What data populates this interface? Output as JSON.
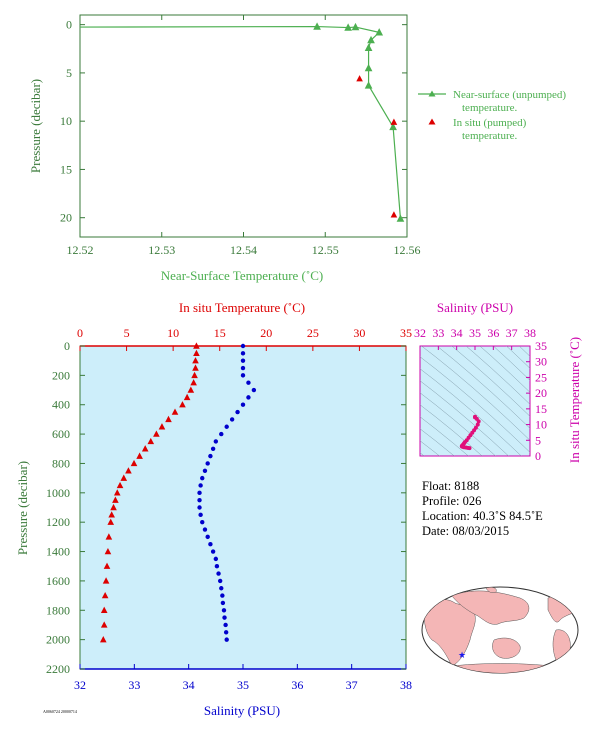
{
  "colors": {
    "axis_green": "#3a7a3a",
    "surface_line": "#4caf50",
    "insitu_red": "#dd0000",
    "salinity_blue": "#0000cc",
    "salinity_magenta": "#cc00aa",
    "ts_pink": "#e0107a",
    "panel_bg": "#cdeefa",
    "land": "#f4b6b6",
    "ocean": "#ffffff"
  },
  "chart_data": [
    {
      "type": "line",
      "xlabel": "Near-Surface Temperature (˚C)",
      "ylabel": "Pressure (decibar)",
      "xlim": [
        12.52,
        12.56
      ],
      "ylim": [
        22,
        -1
      ],
      "xticks": [
        12.52,
        12.53,
        12.54,
        12.55,
        12.56
      ],
      "xtick_labels": [
        "12.52",
        "12.53",
        "12.54",
        "12.55",
        "12.56"
      ],
      "yticks": [
        0,
        5,
        10,
        15,
        20
      ],
      "ytick_labels": [
        "0",
        "5",
        "10",
        "15",
        "20"
      ],
      "legend_position": "right",
      "series": [
        {
          "name": "Near-surface (unpumped) temperature.",
          "marker": "triangle",
          "x": [
            12.52,
            12.549,
            12.5528,
            12.5537,
            12.5566,
            12.5556,
            12.5553,
            12.5553,
            12.5553,
            12.5583,
            12.5592
          ],
          "y": [
            0.25,
            0.2,
            0.3,
            0.25,
            0.8,
            1.6,
            2.4,
            4.5,
            6.3,
            10.6,
            20.1
          ]
        },
        {
          "name": "In situ (pumped) temperature.",
          "marker": "triangle",
          "x": [
            12.5542,
            12.5584,
            12.5584
          ],
          "y": [
            5.6,
            10.1,
            19.7
          ]
        }
      ]
    },
    {
      "type": "scatter",
      "xlabel": "Salinity (PSU)",
      "x2label": "In situ Temperature (˚C)",
      "ylabel": "Pressure (decibar)",
      "salinity_lim": [
        32,
        38
      ],
      "salinity_ticks": [
        "32",
        "33",
        "34",
        "35",
        "36",
        "37",
        "38"
      ],
      "temperature_lim": [
        0,
        35
      ],
      "temperature_ticks": [
        "0",
        "5",
        "10",
        "15",
        "20",
        "25",
        "30",
        "35"
      ],
      "pressure_lim": [
        0,
        2200
      ],
      "pressure_ticks": [
        "0",
        "200",
        "400",
        "600",
        "800",
        "1000",
        "1200",
        "1400",
        "1600",
        "1800",
        "2000",
        "2200"
      ],
      "temperature_profile": {
        "pressure": [
          0,
          50,
          100,
          150,
          200,
          250,
          300,
          350,
          400,
          450,
          500,
          550,
          600,
          650,
          700,
          750,
          800,
          850,
          900,
          950,
          1000,
          1050,
          1100,
          1150,
          1200,
          1300,
          1400,
          1500,
          1600,
          1700,
          1800,
          1900,
          2000
        ],
        "values": [
          12.5,
          12.5,
          12.4,
          12.4,
          12.3,
          12.2,
          11.9,
          11.5,
          11.0,
          10.2,
          9.5,
          8.8,
          8.2,
          7.6,
          7.0,
          6.4,
          5.8,
          5.2,
          4.7,
          4.3,
          4.0,
          3.8,
          3.6,
          3.4,
          3.3,
          3.1,
          3.0,
          2.9,
          2.8,
          2.7,
          2.6,
          2.6,
          2.5
        ]
      },
      "salinity_profile": {
        "pressure": [
          0,
          50,
          100,
          150,
          200,
          250,
          300,
          350,
          400,
          450,
          500,
          550,
          600,
          650,
          700,
          750,
          800,
          850,
          900,
          950,
          1000,
          1050,
          1100,
          1150,
          1200,
          1250,
          1300,
          1350,
          1400,
          1450,
          1500,
          1550,
          1600,
          1650,
          1700,
          1750,
          1800,
          1850,
          1900,
          1950,
          2000
        ],
        "values": [
          35.0,
          35.0,
          35.0,
          35.0,
          35.0,
          35.1,
          35.2,
          35.1,
          35.0,
          34.9,
          34.8,
          34.7,
          34.6,
          34.5,
          34.45,
          34.4,
          34.35,
          34.3,
          34.25,
          34.22,
          34.2,
          34.2,
          34.2,
          34.22,
          34.25,
          34.3,
          34.35,
          34.4,
          34.45,
          34.5,
          34.52,
          34.55,
          34.58,
          34.6,
          34.62,
          34.63,
          34.65,
          34.66,
          34.68,
          34.69,
          34.7
        ]
      }
    },
    {
      "type": "scatter",
      "xlabel": "Salinity (PSU)",
      "ylabel": "In situ Temperature (˚C)",
      "xlim": [
        32,
        38
      ],
      "ylim": [
        0,
        35
      ],
      "xticks": [
        "32",
        "33",
        "34",
        "35",
        "36",
        "37",
        "38"
      ],
      "yticks": [
        "0",
        "5",
        "10",
        "15",
        "20",
        "25",
        "30",
        "35"
      ],
      "points": {
        "salinity": [
          35.0,
          35.0,
          35.1,
          35.2,
          35.15,
          35.05,
          34.95,
          34.85,
          34.75,
          34.65,
          34.55,
          34.45,
          34.4,
          34.35,
          34.3,
          34.28,
          34.3,
          34.35,
          34.4,
          34.5,
          34.6,
          34.7
        ],
        "temperature": [
          12.5,
          12.3,
          11.8,
          11.0,
          10.0,
          9.0,
          8.2,
          7.4,
          6.6,
          5.8,
          5.0,
          4.4,
          4.0,
          3.6,
          3.3,
          3.1,
          3.0,
          2.9,
          2.8,
          2.7,
          2.6,
          2.5
        ]
      }
    }
  ],
  "float_info": {
    "float": "Float:  8188",
    "profile": "Profile:  026",
    "location": "Location:  40.3˚S  84.5˚E",
    "date": "Date:  08/03/2015"
  },
  "footer_code": "A0060724 20000714"
}
